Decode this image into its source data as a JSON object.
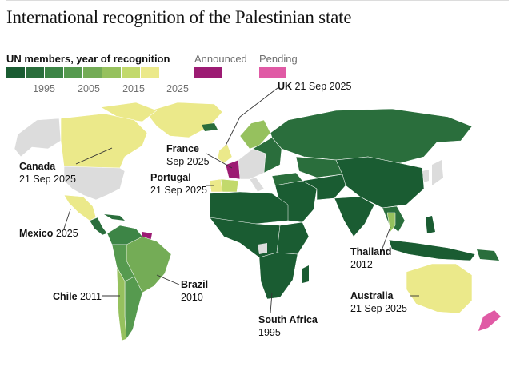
{
  "title": "International recognition of the Palestinian state",
  "legend": {
    "un_members_label": "UN members, year of recognition",
    "announced_label": "Announced",
    "pending_label": "Pending",
    "tick_labels": [
      "1995",
      "2005",
      "2015",
      "2025"
    ],
    "scale_colors": [
      "#1a5c32",
      "#2a6e3c",
      "#3d8546",
      "#569a4f",
      "#74ac56",
      "#96c15e",
      "#c2d96c",
      "#ebe98a"
    ],
    "announced_color": "#9c1b73",
    "pending_color": "#e05aa5",
    "no_data_color": "#dcdcdc"
  },
  "annotations": {
    "uk": {
      "name": "UK",
      "date": "21 Sep 2025"
    },
    "canada": {
      "name": "Canada",
      "date": "21 Sep 2025"
    },
    "france": {
      "name": "France",
      "date": "Sep 2025"
    },
    "portugal": {
      "name": "Portugal",
      "date": "21 Sep 2025"
    },
    "mexico": {
      "name": "Mexico",
      "date": "2025"
    },
    "brazil": {
      "name": "Brazil",
      "date": "2010"
    },
    "chile": {
      "name": "Chile",
      "date": "2011"
    },
    "south_africa": {
      "name": "South Africa",
      "date": "1995"
    },
    "thailand": {
      "name": "Thailand",
      "date": "2012"
    },
    "australia": {
      "name": "Australia",
      "date": "21 Sep 2025"
    }
  }
}
